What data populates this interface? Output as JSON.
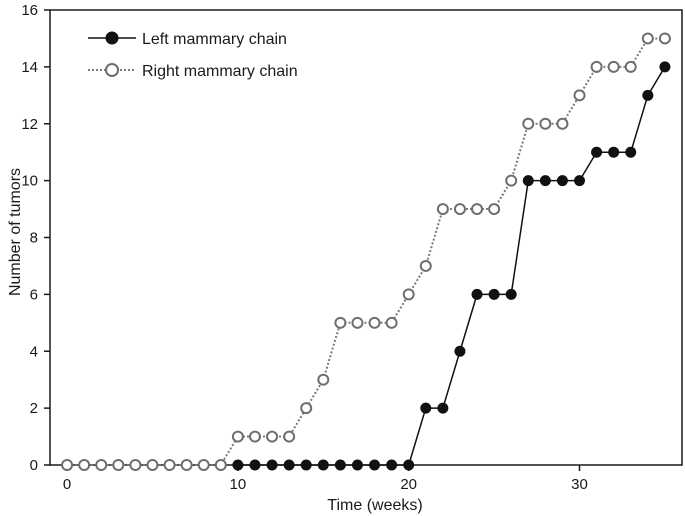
{
  "chart_data": {
    "type": "line",
    "xlabel": "Time (weeks)",
    "ylabel": "Number of tumors",
    "xlim": [
      -1,
      36
    ],
    "ylim": [
      0,
      16
    ],
    "xticks": [
      0,
      10,
      20,
      30
    ],
    "yticks": [
      0,
      2,
      4,
      6,
      8,
      10,
      12,
      14,
      16
    ],
    "legend_position": "top-left",
    "grid": false,
    "x": [
      0,
      1,
      2,
      3,
      4,
      5,
      6,
      7,
      8,
      9,
      10,
      11,
      12,
      13,
      14,
      15,
      16,
      17,
      18,
      19,
      20,
      21,
      22,
      23,
      24,
      25,
      26,
      27,
      28,
      29,
      30,
      31,
      32,
      33,
      34,
      35
    ],
    "series": [
      {
        "name": "Left mammary chain",
        "marker": "filled-circle",
        "line": "solid",
        "color": "#111111",
        "x": [
          10,
          11,
          12,
          13,
          14,
          15,
          16,
          17,
          18,
          19,
          20,
          21,
          22,
          23,
          24,
          25,
          26,
          27,
          28,
          29,
          30,
          31,
          32,
          33,
          34,
          35
        ],
        "values": [
          0,
          0,
          0,
          0,
          0,
          0,
          0,
          0,
          0,
          0,
          0,
          2,
          2,
          4,
          6,
          6,
          6,
          10,
          10,
          10,
          10,
          11,
          11,
          11,
          13,
          14
        ]
      },
      {
        "name": "Right mammary chain",
        "marker": "open-circle",
        "line": "dotted",
        "color": "#7a7a7a",
        "x": [
          0,
          1,
          2,
          3,
          4,
          5,
          6,
          7,
          8,
          9,
          10,
          11,
          12,
          13,
          14,
          15,
          16,
          17,
          18,
          19,
          20,
          21,
          22,
          23,
          24,
          25,
          26,
          27,
          28,
          29,
          30,
          31,
          32,
          33,
          34,
          35
        ],
        "values": [
          0,
          0,
          0,
          0,
          0,
          0,
          0,
          0,
          0,
          0,
          1,
          1,
          1,
          1,
          2,
          3,
          5,
          5,
          5,
          5,
          6,
          7,
          9,
          9,
          9,
          9,
          10,
          12,
          12,
          12,
          13,
          14,
          14,
          14,
          15,
          15
        ]
      }
    ]
  }
}
